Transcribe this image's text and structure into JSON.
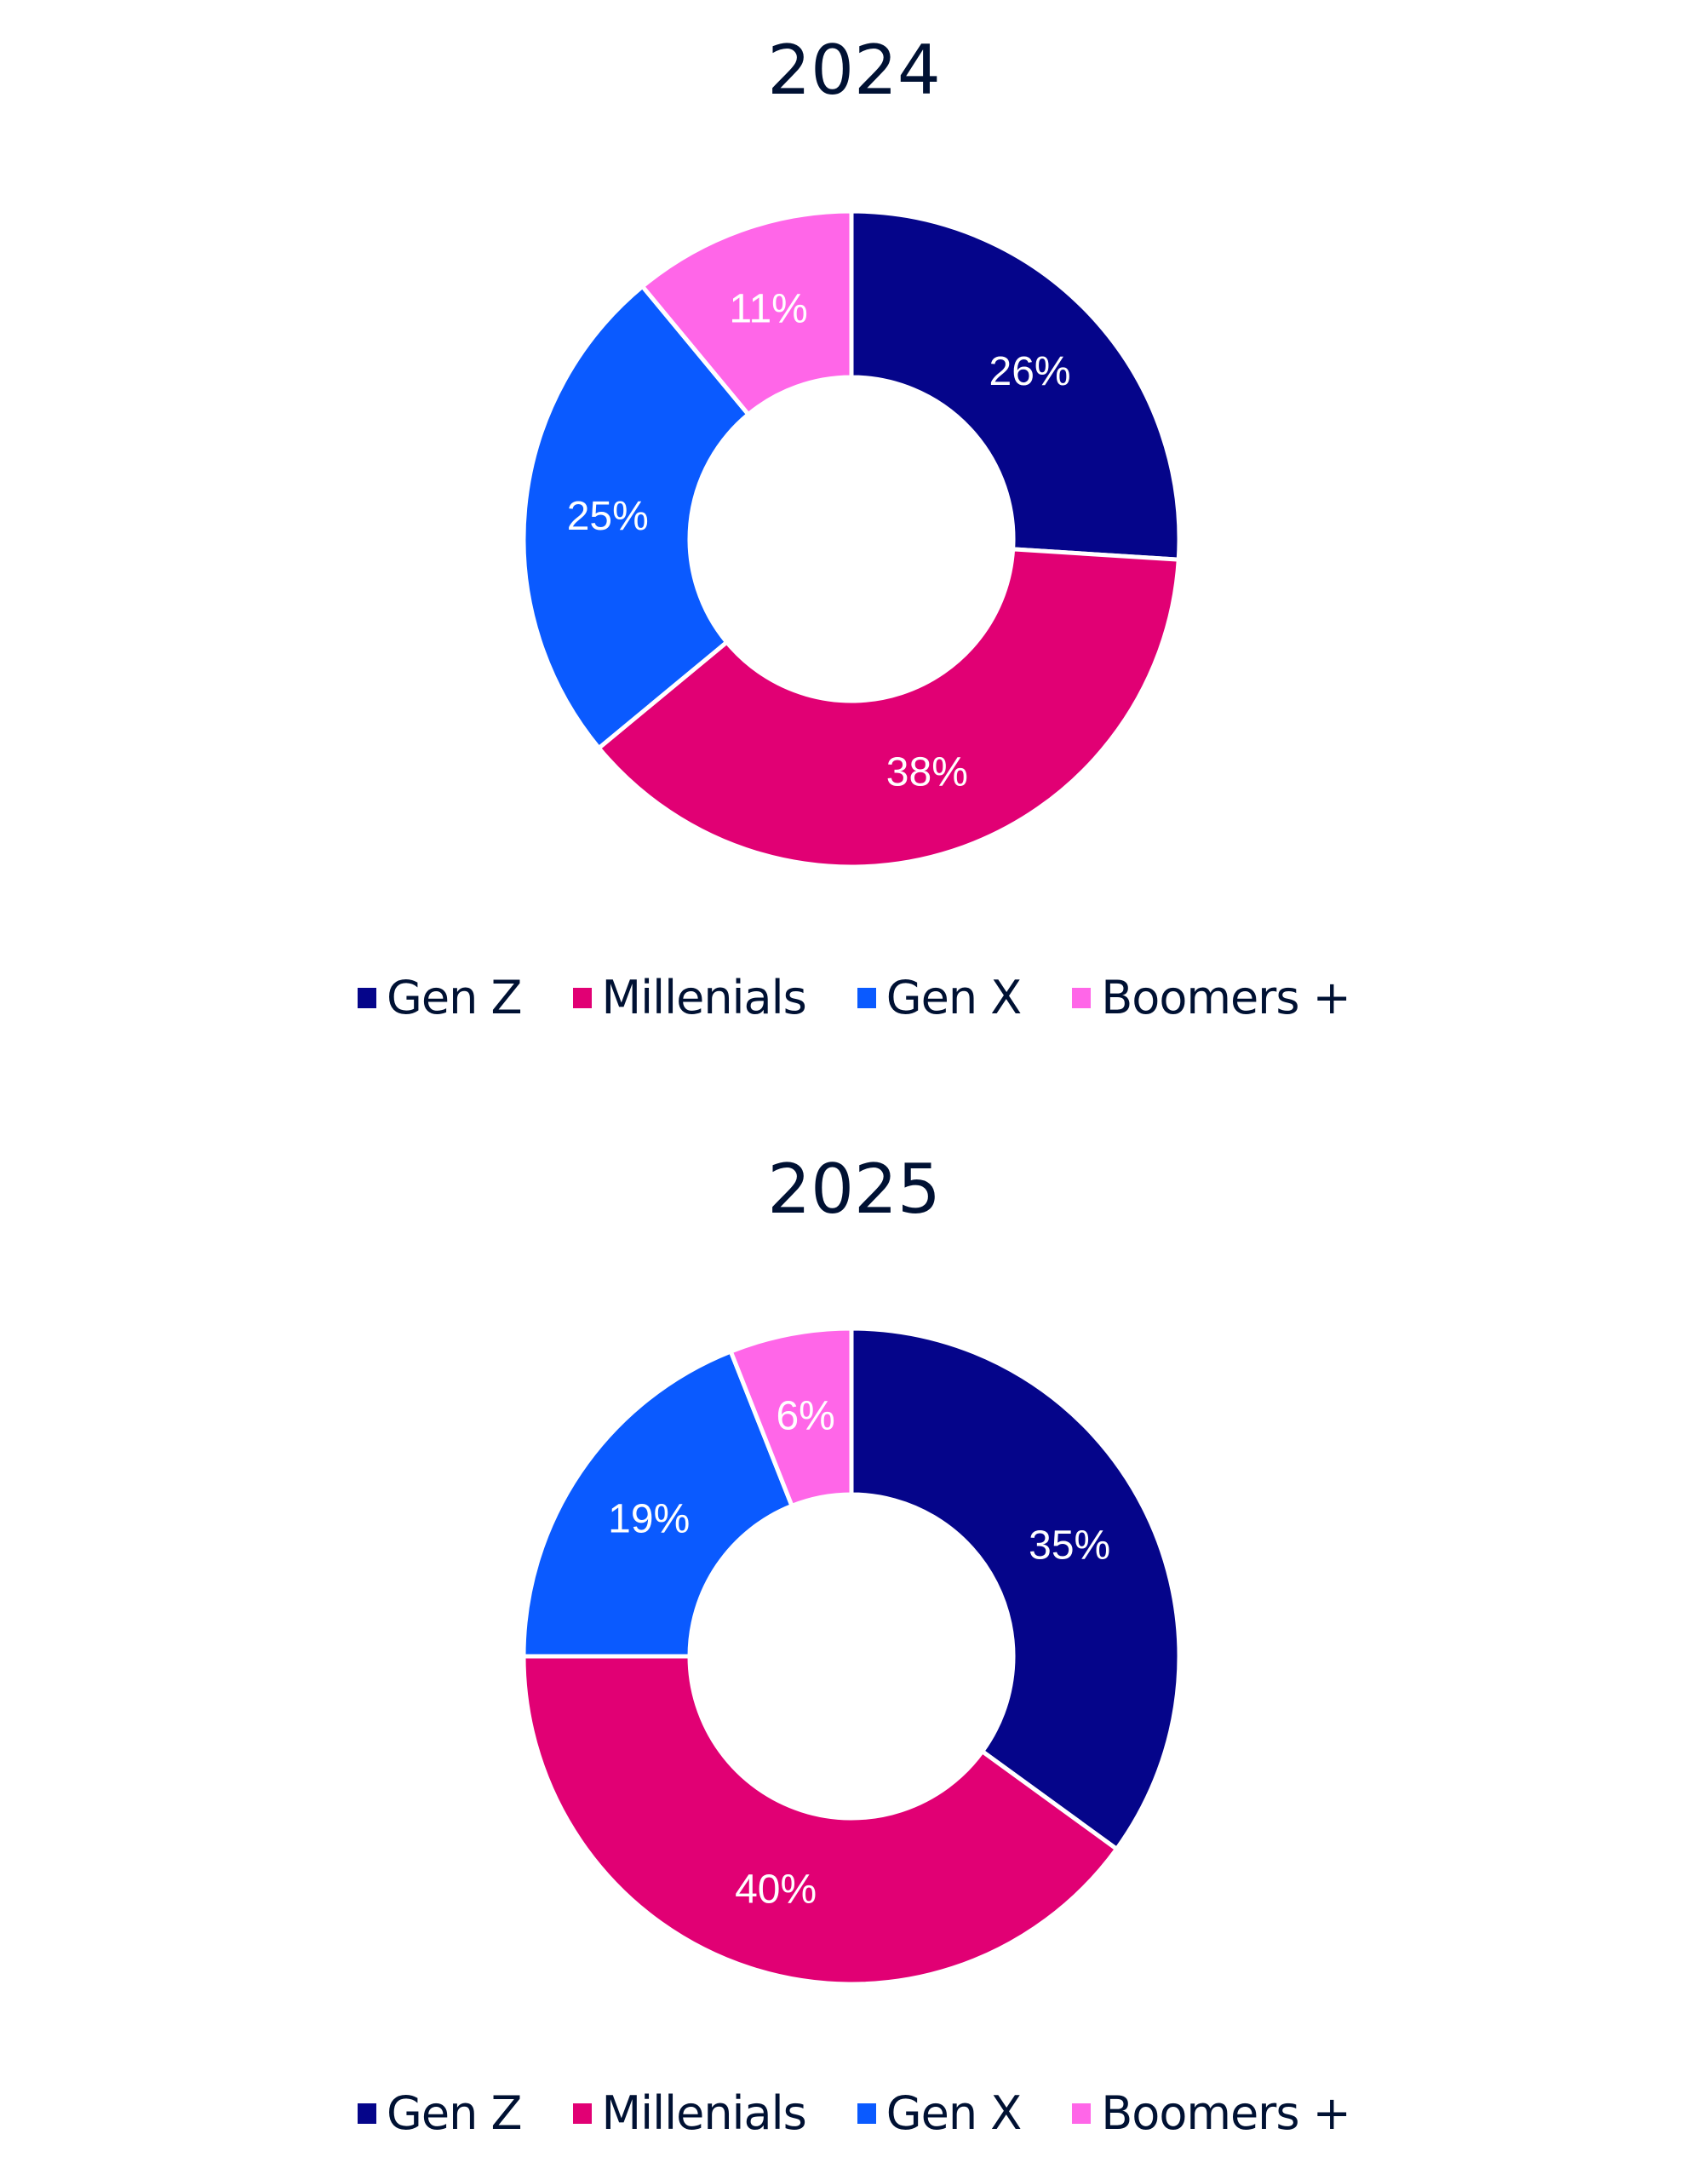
{
  "colors": {
    "gen_z": "#05058A",
    "millenials": "#E10074",
    "gen_x": "#0A5AFF",
    "boomers": "#FF66E8",
    "title_text": "#001133"
  },
  "chart_data": [
    {
      "type": "pie",
      "variant": "donut",
      "title": "2024",
      "categories": [
        "Gen Z",
        "Millenials",
        "Gen X",
        "Boomers +"
      ],
      "values": [
        26,
        38,
        25,
        11
      ],
      "labels": [
        "26%",
        "38%",
        "25%",
        "11%"
      ],
      "colors": [
        "#05058A",
        "#E10074",
        "#0A5AFF",
        "#FF66E8"
      ],
      "legend_position": "bottom",
      "start_angle": "12 o'clock, clockwise"
    },
    {
      "type": "pie",
      "variant": "donut",
      "title": "2025",
      "categories": [
        "Gen Z",
        "Millenials",
        "Gen X",
        "Boomers +"
      ],
      "values": [
        35,
        40,
        19,
        6
      ],
      "labels": [
        "35%",
        "40%",
        "19%",
        "6%"
      ],
      "colors": [
        "#05058A",
        "#E10074",
        "#0A5AFF",
        "#FF66E8"
      ],
      "legend_position": "bottom",
      "start_angle": "12 o'clock, clockwise"
    }
  ],
  "charts": [
    {
      "title": "2024",
      "legend": [
        {
          "label": "Gen Z",
          "color": "#05058A"
        },
        {
          "label": "Millenials",
          "color": "#E10074"
        },
        {
          "label": "Gen X",
          "color": "#0A5AFF"
        },
        {
          "label": "Boomers +",
          "color": "#FF66E8"
        }
      ]
    },
    {
      "title": "2025",
      "legend": [
        {
          "label": "Gen Z",
          "color": "#05058A"
        },
        {
          "label": "Millenials",
          "color": "#E10074"
        },
        {
          "label": "Gen X",
          "color": "#0A5AFF"
        },
        {
          "label": "Boomers +",
          "color": "#FF66E8"
        }
      ]
    }
  ]
}
